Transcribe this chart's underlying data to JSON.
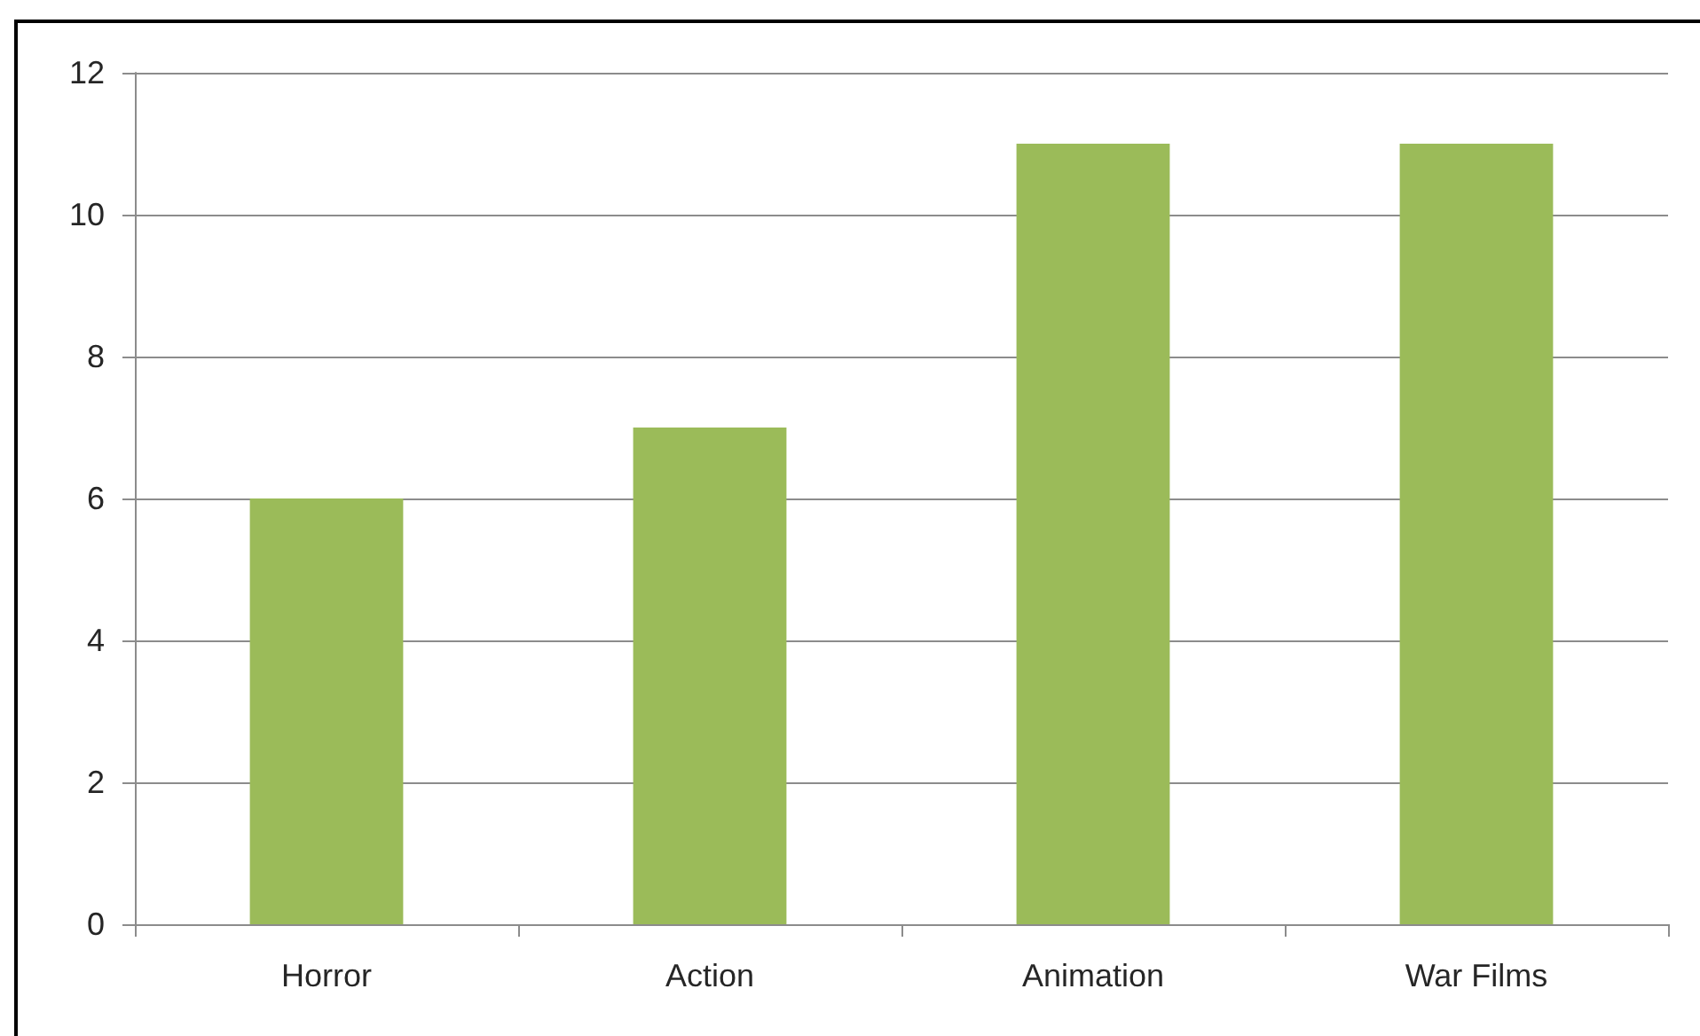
{
  "chart_data": {
    "type": "bar",
    "categories": [
      "Horror",
      "Action",
      "Animation",
      "War Films"
    ],
    "values": [
      6,
      7,
      11,
      11
    ],
    "color": "#9bbb59",
    "ylim": [
      0,
      12
    ],
    "yticks": [
      0,
      2,
      4,
      6,
      8,
      10,
      12
    ],
    "grid": "y"
  }
}
